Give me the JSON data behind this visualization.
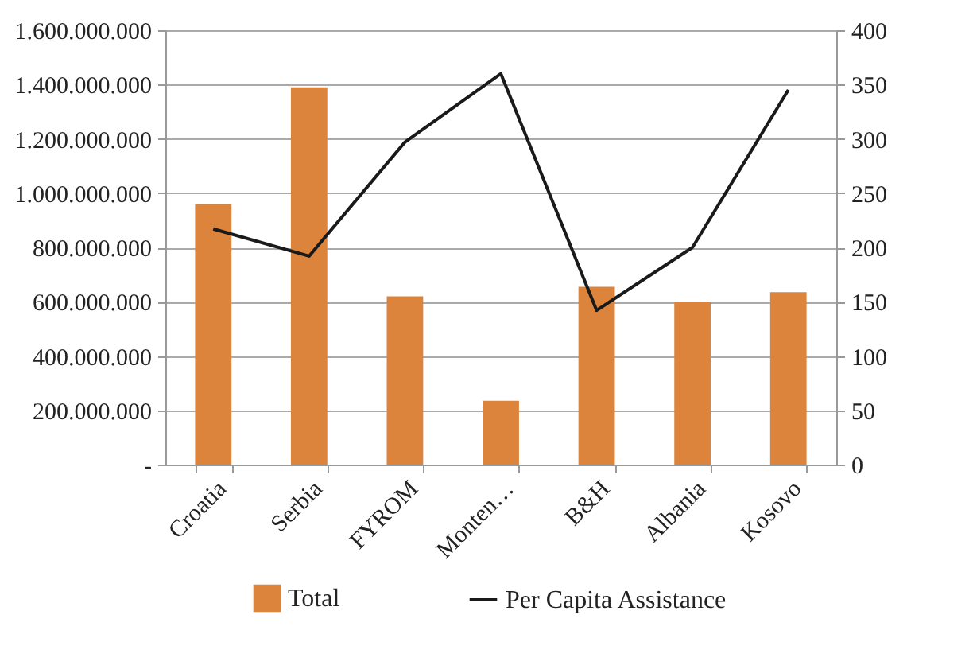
{
  "chart_data": {
    "type": "bar",
    "categories": [
      "Croatia",
      "Serbia",
      "FYROM",
      "Monten…",
      "B&H",
      "Albania",
      "Kosovo"
    ],
    "series": [
      {
        "name": "Total",
        "color": "#dd843c",
        "values": [
          960000000,
          1390000000,
          620000000,
          235000000,
          655000000,
          600000000,
          635000000
        ]
      },
      {
        "name": "Per Capita Assistance",
        "type": "line",
        "axis": "y2",
        "color": "#1a1a1a",
        "values": [
          217,
          192,
          297,
          360,
          142,
          200,
          345
        ]
      }
    ],
    "ylim": [
      0,
      1600000000
    ],
    "yticks": [
      {
        "value": 0,
        "label": "-"
      },
      {
        "value": 200000000,
        "label": "200.000.000"
      },
      {
        "value": 400000000,
        "label": "400.000.000"
      },
      {
        "value": 600000000,
        "label": "600.000.000"
      },
      {
        "value": 800000000,
        "label": "800.000.000"
      },
      {
        "value": 1000000000,
        "label": "1.000.000.000"
      },
      {
        "value": 1200000000,
        "label": "1.200.000.000"
      },
      {
        "value": 1400000000,
        "label": "1.400.000.000"
      },
      {
        "value": 1600000000,
        "label": "1.600.000.000"
      }
    ],
    "y2lim": [
      0,
      400
    ],
    "y2ticks": [
      0,
      50,
      100,
      150,
      200,
      250,
      300,
      350,
      400
    ],
    "grid": "y",
    "legend": "bottom",
    "marker": "none",
    "line_style": "solid"
  }
}
